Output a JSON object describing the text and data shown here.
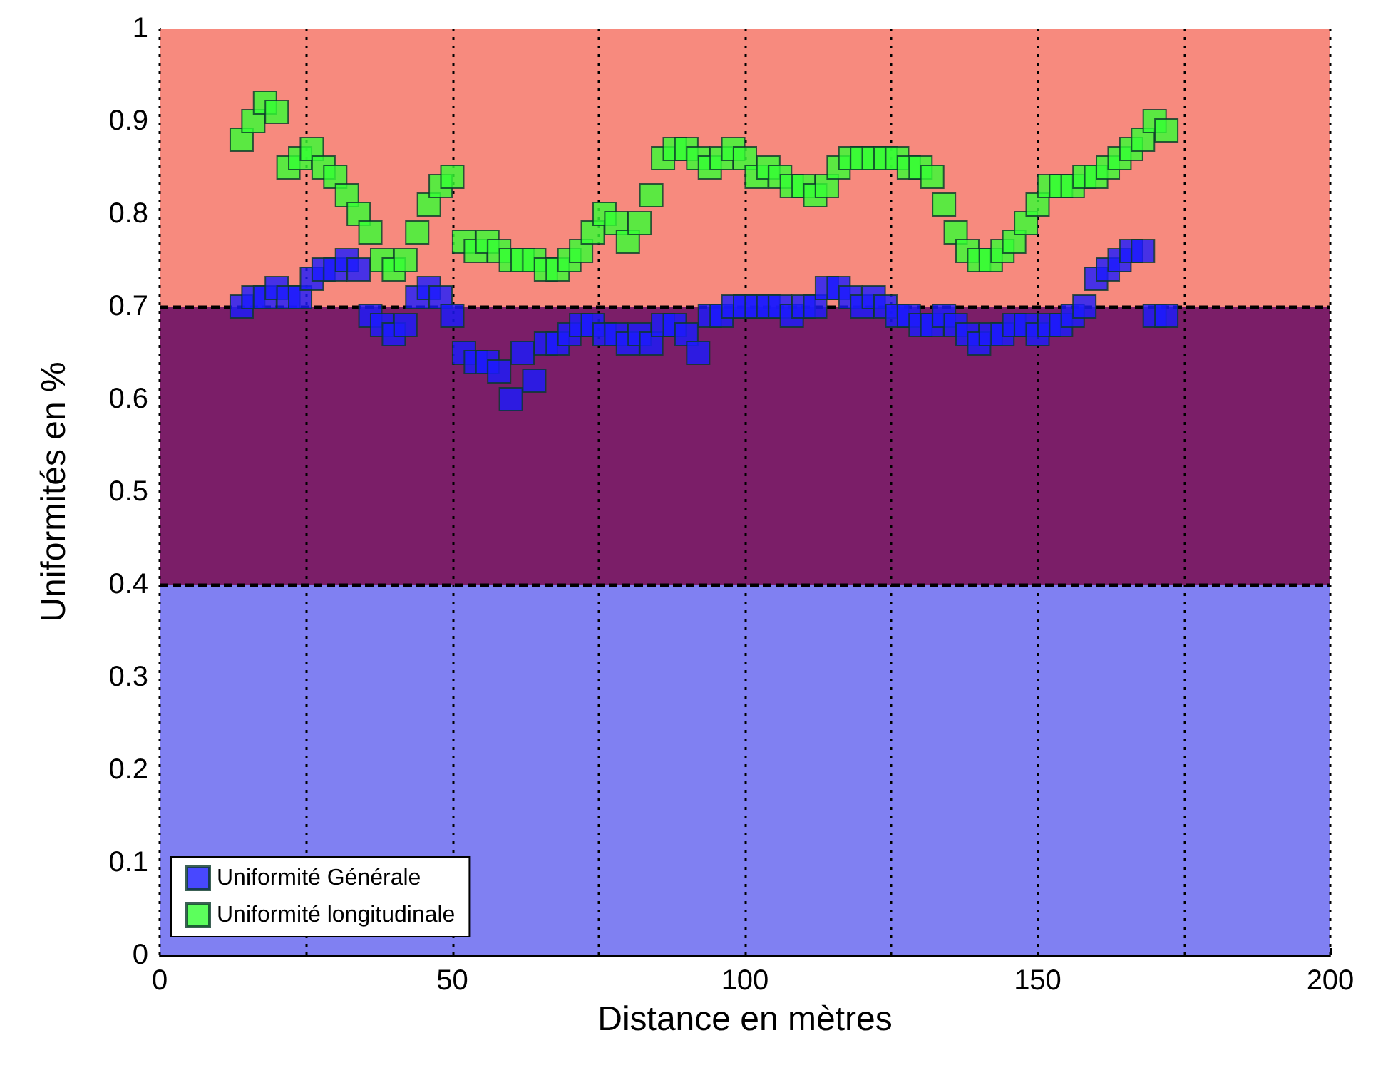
{
  "chart_data": {
    "type": "scatter",
    "xlabel": "Distance en mètres",
    "ylabel": "Uniformités en %",
    "xlim": [
      0,
      200
    ],
    "xticks": [
      0,
      {
        "value": 25,
        "label": null
      },
      50,
      {
        "value": 75,
        "label": null
      },
      100,
      {
        "value": 125,
        "label": null
      },
      150,
      {
        "value": 175,
        "label": null
      },
      200
    ],
    "ylim": [
      0,
      1
    ],
    "yticks": [
      0,
      0.1,
      0.2,
      0.3,
      0.4,
      0.5,
      0.6,
      0.7,
      0.8,
      0.9,
      1
    ],
    "grid": "x",
    "legend": "bottom left",
    "marker": "square",
    "bands": [
      {
        "axis": "y",
        "from": 0,
        "to": 0.4,
        "color": "#8080f2"
      },
      {
        "axis": "y",
        "from": 0.4,
        "to": 0.7,
        "color": "#7b1e68"
      },
      {
        "axis": "y",
        "from": 0.7,
        "to": 1,
        "color": "#f78a7e"
      }
    ],
    "ref_lines": [
      {
        "axis": "y",
        "value": 0.4,
        "line_style": "dashed",
        "color": "#000000"
      },
      {
        "axis": "y",
        "value": 0.7,
        "line_style": "dashed",
        "color": "#000000"
      }
    ],
    "x": [
      14,
      16,
      18,
      20,
      22,
      24,
      26,
      28,
      30,
      32,
      34,
      36,
      38,
      40,
      42,
      44,
      46,
      48,
      50,
      52,
      54,
      56,
      58,
      60,
      62,
      64,
      66,
      68,
      70,
      72,
      74,
      76,
      78,
      80,
      82,
      84,
      86,
      88,
      90,
      92,
      94,
      96,
      98,
      100,
      102,
      104,
      106,
      108,
      110,
      112,
      114,
      116,
      118,
      120,
      122,
      124,
      126,
      128,
      130,
      132,
      134,
      136,
      138,
      140,
      142,
      144,
      146,
      148,
      150,
      152,
      154,
      156,
      158,
      160,
      162,
      164,
      166,
      168,
      170,
      172
    ],
    "series": [
      {
        "name": "Uniformité Générale",
        "color": "#1a1aff",
        "values": [
          0.7,
          0.71,
          0.71,
          0.72,
          0.71,
          0.71,
          0.73,
          0.74,
          0.74,
          0.75,
          0.74,
          0.69,
          0.68,
          0.67,
          0.68,
          0.71,
          0.72,
          0.71,
          0.69,
          0.65,
          0.64,
          0.64,
          0.63,
          0.6,
          0.65,
          0.62,
          0.66,
          0.66,
          0.67,
          0.68,
          0.68,
          0.67,
          0.67,
          0.66,
          0.67,
          0.66,
          0.68,
          0.68,
          0.67,
          0.65,
          0.69,
          0.69,
          0.7,
          0.7,
          0.7,
          0.7,
          0.7,
          0.69,
          0.7,
          0.7,
          0.72,
          0.72,
          0.71,
          0.7,
          0.71,
          0.7,
          0.69,
          0.69,
          0.68,
          0.68,
          0.69,
          0.68,
          0.67,
          0.66,
          0.67,
          0.67,
          0.68,
          0.68,
          0.67,
          0.68,
          0.68,
          0.69,
          0.7,
          0.73,
          0.74,
          0.75,
          0.76,
          0.76,
          0.69,
          0.69
        ]
      },
      {
        "name": "Uniformité longitudinale",
        "color": "#33ff33",
        "values": [
          0.88,
          0.9,
          0.92,
          0.91,
          0.85,
          0.86,
          0.87,
          0.85,
          0.84,
          0.82,
          0.8,
          0.78,
          0.75,
          0.74,
          0.75,
          0.78,
          0.81,
          0.83,
          0.84,
          0.77,
          0.76,
          0.77,
          0.76,
          0.75,
          0.75,
          0.75,
          0.74,
          0.74,
          0.75,
          0.76,
          0.78,
          0.8,
          0.79,
          0.77,
          0.79,
          0.82,
          0.86,
          0.87,
          0.87,
          0.86,
          0.85,
          0.86,
          0.87,
          0.86,
          0.84,
          0.85,
          0.84,
          0.83,
          0.83,
          0.82,
          0.83,
          0.85,
          0.86,
          0.86,
          0.86,
          0.86,
          0.86,
          0.85,
          0.85,
          0.84,
          0.81,
          0.78,
          0.76,
          0.75,
          0.75,
          0.76,
          0.77,
          0.79,
          0.81,
          0.83,
          0.83,
          0.83,
          0.84,
          0.84,
          0.85,
          0.86,
          0.87,
          0.88,
          0.9,
          0.89
        ]
      }
    ]
  }
}
